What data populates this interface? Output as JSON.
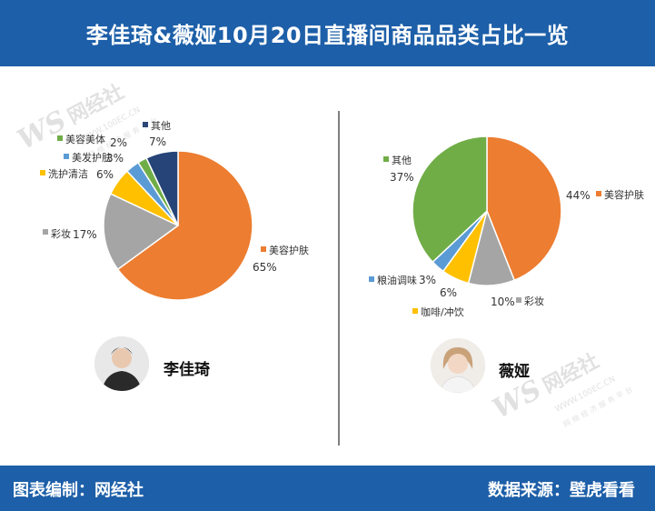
{
  "header": {
    "title": "李佳琦&薇娅10月20日直播间商品品类占比一览"
  },
  "footer": {
    "left": "图表编制：网经社",
    "right": "数据来源：壁虎看看"
  },
  "watermark": {
    "logo": "WS",
    "brand": "网经社",
    "url": "WWW.100EC.CN",
    "slogan": "网络经济服务平台"
  },
  "people": [
    {
      "name": "李佳琦",
      "avatar_color": "#d9d9d9"
    },
    {
      "name": "薇娅",
      "avatar_color": "#e6e0dc"
    }
  ],
  "chart_data": [
    {
      "type": "pie",
      "person": "李佳琦",
      "slices": [
        {
          "label": "美容护肤",
          "value": 65,
          "value_label": "65%",
          "color": "#ed7d31"
        },
        {
          "label": "彩妆",
          "value": 17,
          "value_label": "17%",
          "color": "#a5a5a5"
        },
        {
          "label": "洗护清洁",
          "value": 6,
          "value_label": "6%",
          "color": "#ffc000"
        },
        {
          "label": "美发护肤",
          "value": 3,
          "value_label": "3%",
          "color": "#5b9bd5"
        },
        {
          "label": "美容美体",
          "value": 2,
          "value_label": "2%",
          "color": "#70ad47"
        },
        {
          "label": "其他",
          "value": 7,
          "value_label": "7%",
          "color": "#264478"
        }
      ]
    },
    {
      "type": "pie",
      "person": "薇娅",
      "slices": [
        {
          "label": "美容护肤",
          "value": 44,
          "value_label": "44%",
          "color": "#ed7d31"
        },
        {
          "label": "彩妆",
          "value": 10,
          "value_label": "10%",
          "color": "#a5a5a5"
        },
        {
          "label": "咖啡/冲饮",
          "value": 6,
          "value_label": "6%",
          "color": "#ffc000"
        },
        {
          "label": "粮油调味",
          "value": 3,
          "value_label": "3%",
          "color": "#5b9bd5"
        },
        {
          "label": "其他",
          "value": 37,
          "value_label": "37%",
          "color": "#70ad47"
        }
      ]
    }
  ]
}
